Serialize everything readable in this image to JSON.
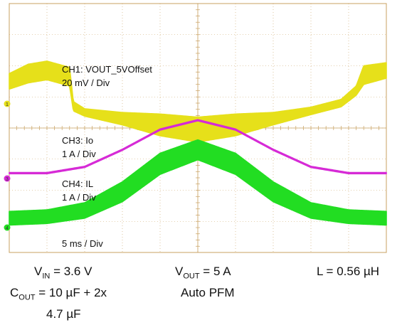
{
  "chart_data": {
    "type": "line",
    "grid": true,
    "divisions": {
      "x": 10,
      "y": 8
    },
    "colors": {
      "ch1": "#e6e01a",
      "ch3": "#d62ad6",
      "ch4": "#22dd22",
      "grid": "#c8a060",
      "frame": "#c8a060"
    },
    "annotations": {
      "ch1_name": "CH1: VOUT_5VOffset",
      "ch1_scale": "20 mV / Div",
      "ch3_name": "CH3: Io",
      "ch3_scale": "1 A  / Div",
      "ch4_name": "CH4: IL",
      "ch4_scale": "1 A / Div",
      "timebase": "5 ms / Div"
    },
    "channel_markers": {
      "ch1": "1",
      "ch3": "3",
      "ch4": "4"
    },
    "series": [
      {
        "channel": "ch1",
        "x": [
          0,
          0.5,
          1.0,
          1.6,
          1.7,
          2.0,
          3.0,
          4.0,
          5.0,
          6.0,
          7.0,
          8.0,
          8.8,
          9.2,
          9.4,
          10.0
        ],
        "y": [
          5.5,
          5.75,
          5.85,
          5.65,
          4.7,
          4.5,
          4.3,
          4.1,
          3.95,
          4.1,
          4.3,
          4.55,
          4.8,
          5.2,
          5.7,
          5.85
        ],
        "ripple": [
          0.25,
          0.3,
          0.3,
          0.3,
          0.15,
          0.12,
          0.2,
          0.35,
          0.4,
          0.35,
          0.2,
          0.12,
          0.12,
          0.15,
          0.3,
          0.25
        ]
      },
      {
        "channel": "ch3",
        "x": [
          0,
          1,
          2,
          3,
          4,
          5,
          6,
          7,
          8,
          9,
          10
        ],
        "y": [
          2.55,
          2.55,
          2.75,
          3.3,
          3.95,
          4.25,
          3.95,
          3.3,
          2.75,
          2.55,
          2.55
        ],
        "ripple": [
          0.02,
          0.02,
          0.02,
          0.02,
          0.02,
          0.02,
          0.02,
          0.02,
          0.02,
          0.02,
          0.02
        ]
      },
      {
        "channel": "ch4",
        "x": [
          0,
          1,
          2,
          3,
          4,
          5,
          6,
          7,
          8,
          9,
          10
        ],
        "y": [
          1.1,
          1.15,
          1.35,
          1.95,
          2.85,
          3.3,
          2.85,
          1.95,
          1.35,
          1.15,
          1.1
        ],
        "ripple": [
          0.22,
          0.22,
          0.25,
          0.32,
          0.34,
          0.32,
          0.34,
          0.32,
          0.25,
          0.22,
          0.22
        ]
      }
    ]
  },
  "conditions": {
    "vin_label": "V",
    "vin_sub": "IN",
    "vin_value": " = 3.6 V",
    "vout_label": "V",
    "vout_sub": "OUT",
    "vout_value": " = 5 A",
    "inductor": "L = 0.56 µH",
    "cout_label": "C",
    "cout_sub": "OUT",
    "cout_value": " = 10 µF + 2x",
    "cout_value_2": "4.7 µF",
    "mode": "Auto PFM"
  }
}
